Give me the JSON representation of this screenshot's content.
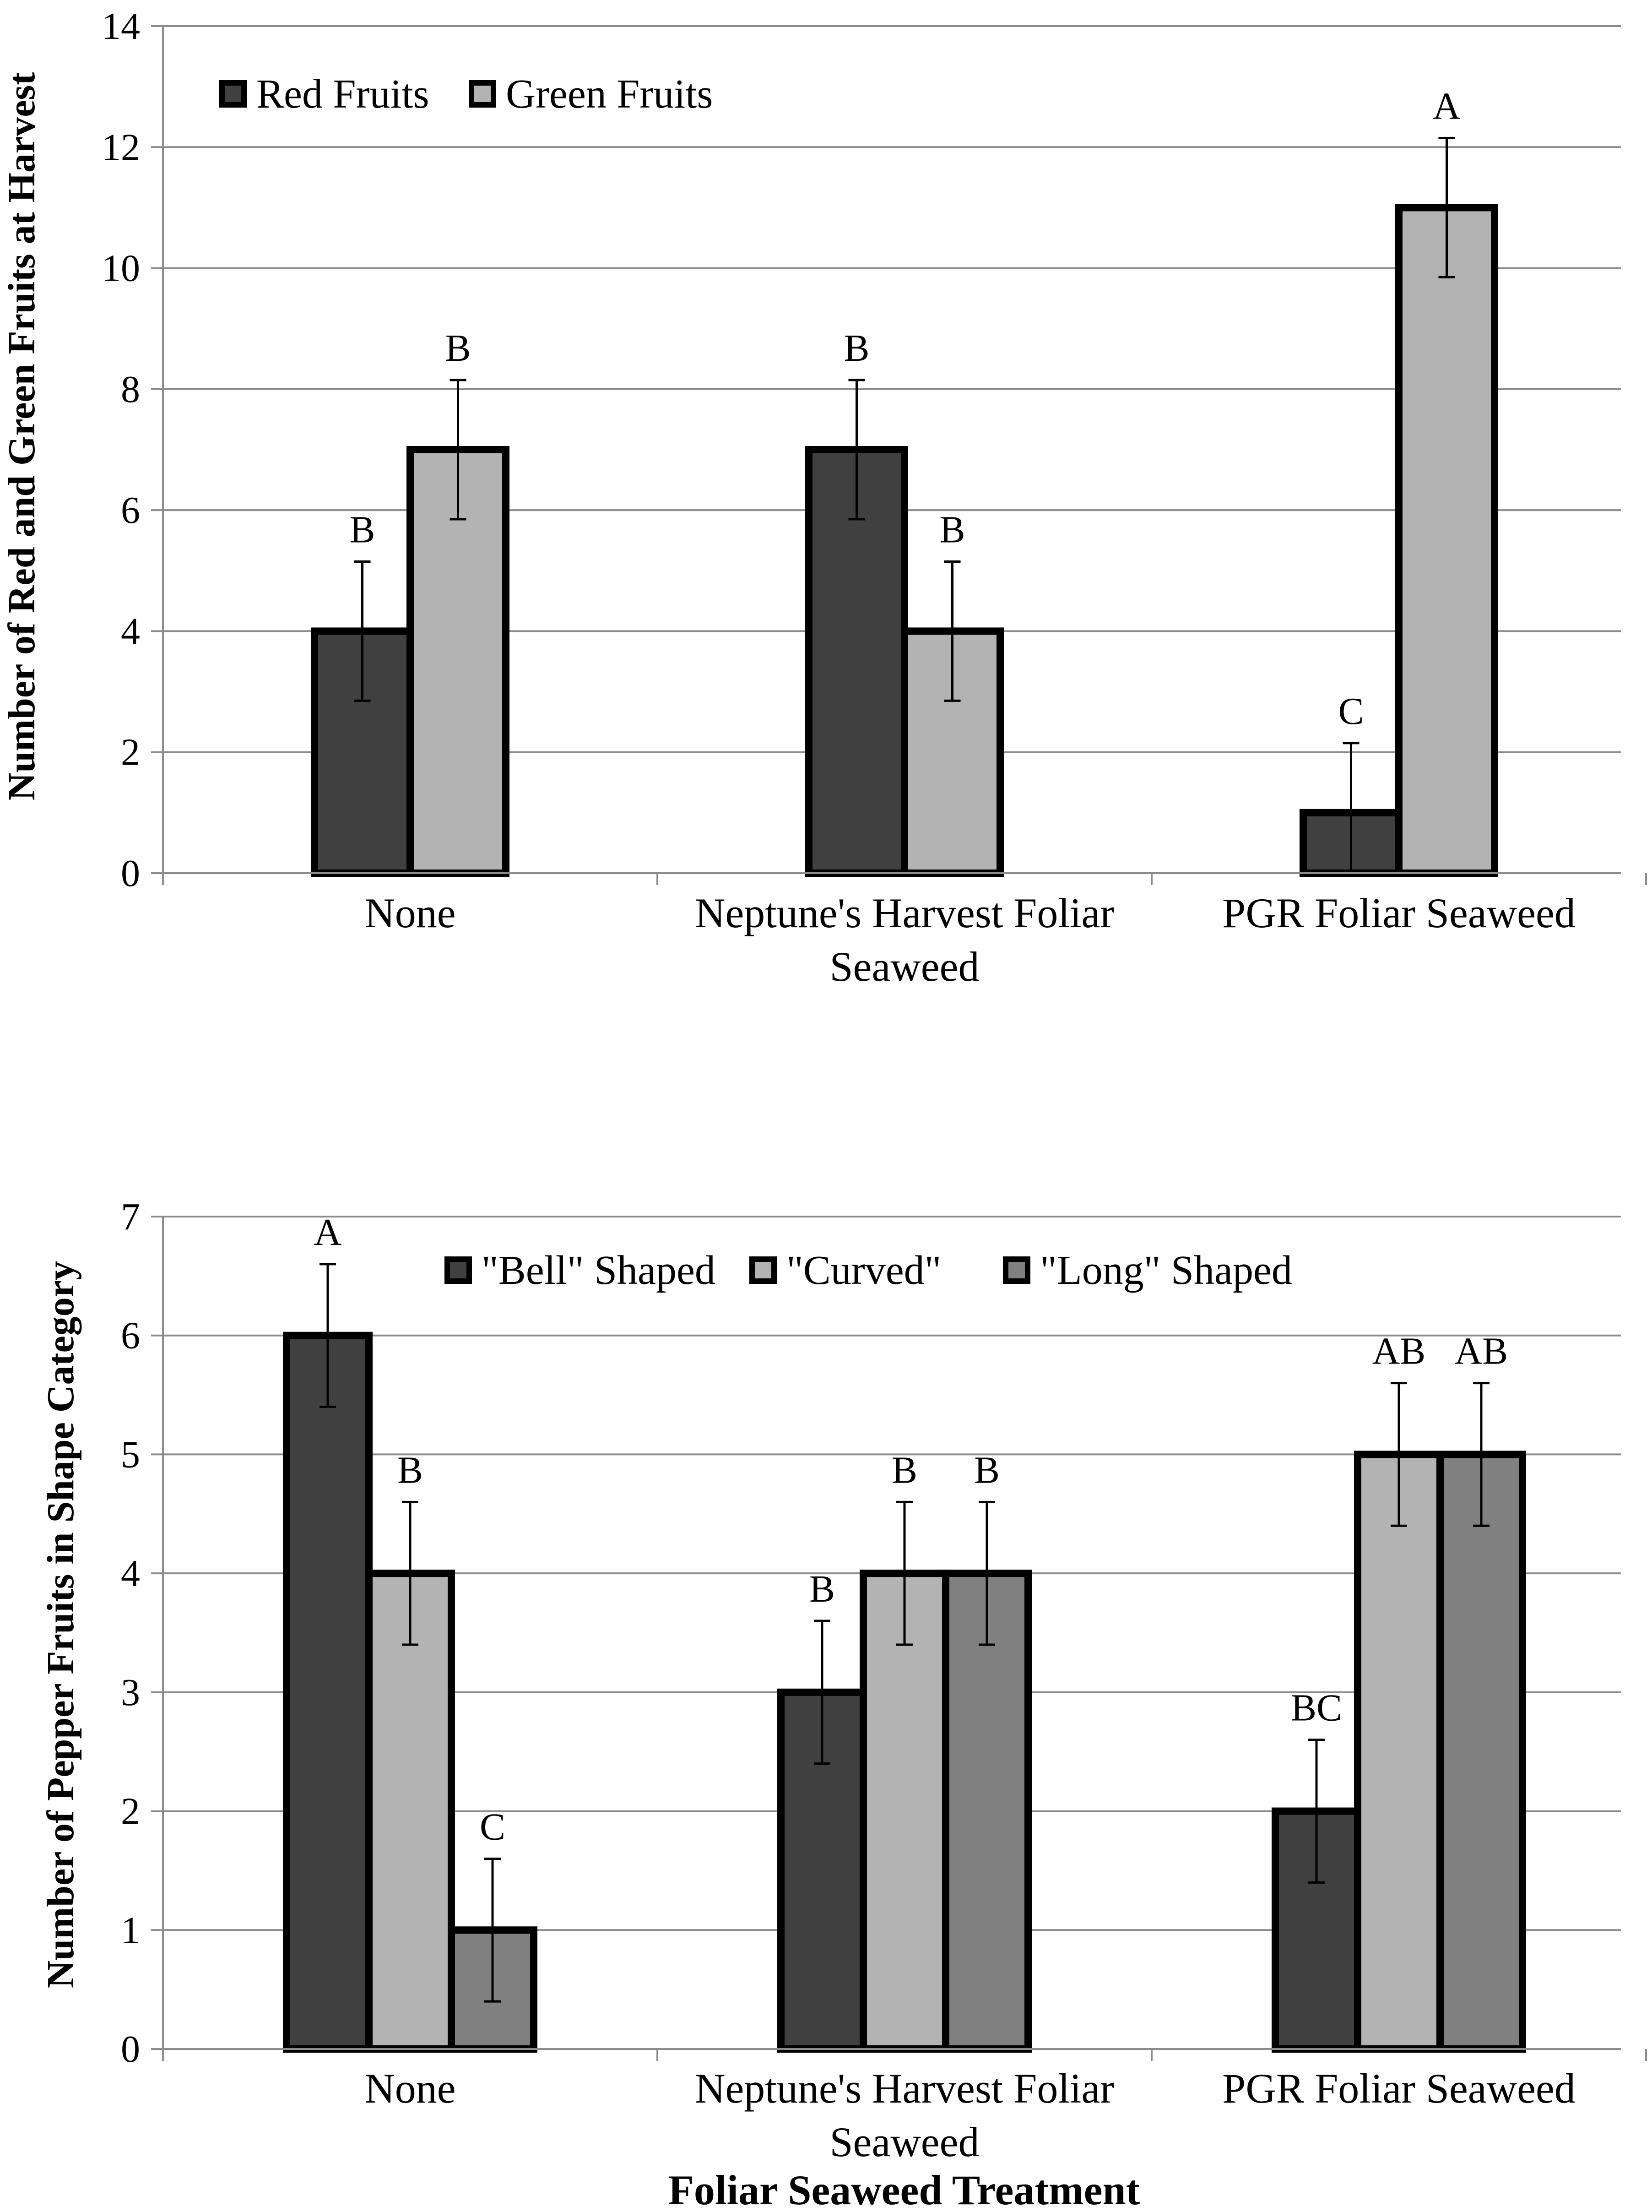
{
  "chart_data": [
    {
      "type": "bar",
      "title": "",
      "xlabel": "",
      "ylabel": "Number of Red and Green Fruits at Harvest",
      "ylim": [
        0,
        14
      ],
      "ytick_step": 2,
      "grid": true,
      "legend_position": "top-left",
      "categories": [
        [
          "None"
        ],
        [
          "Neptune's Harvest Foliar",
          "Seaweed"
        ],
        [
          "PGR Foliar Seaweed"
        ]
      ],
      "series": [
        {
          "name": "Red Fruits",
          "color": "#404040",
          "values": [
            4,
            7,
            1
          ],
          "errors": [
            1.15,
            1.15,
            1.15
          ],
          "letters": [
            "B",
            "B",
            "C"
          ]
        },
        {
          "name": "Green Fruits",
          "color": "#b3b3b3",
          "values": [
            7,
            4,
            11
          ],
          "errors": [
            1.15,
            1.15,
            1.15
          ],
          "letters": [
            "B",
            "B",
            "A"
          ]
        }
      ]
    },
    {
      "type": "bar",
      "title": "",
      "xlabel": "Foliar Seaweed Treatment",
      "ylabel": "Number of Pepper Fruits in Shape Category",
      "ylim": [
        0,
        7
      ],
      "ytick_step": 1,
      "grid": true,
      "legend_position": "top-center",
      "categories": [
        [
          "None"
        ],
        [
          "Neptune's Harvest Foliar",
          "Seaweed"
        ],
        [
          "PGR Foliar Seaweed"
        ]
      ],
      "series": [
        {
          "name": "\"Bell\" Shaped",
          "color": "#404040",
          "values": [
            6,
            3,
            2
          ],
          "errors": [
            0.6,
            0.6,
            0.6
          ],
          "letters": [
            "A",
            "B",
            "BC"
          ]
        },
        {
          "name": "\"Curved\"",
          "color": "#b3b3b3",
          "values": [
            4,
            4,
            5
          ],
          "errors": [
            0.6,
            0.6,
            0.6
          ],
          "letters": [
            "B",
            "B",
            "AB"
          ]
        },
        {
          "name": "\"Long\" Shaped",
          "color": "#808080",
          "values": [
            1,
            4,
            5
          ],
          "errors": [
            0.6,
            0.6,
            0.6
          ],
          "letters": [
            "C",
            "B",
            "AB"
          ]
        }
      ]
    }
  ]
}
